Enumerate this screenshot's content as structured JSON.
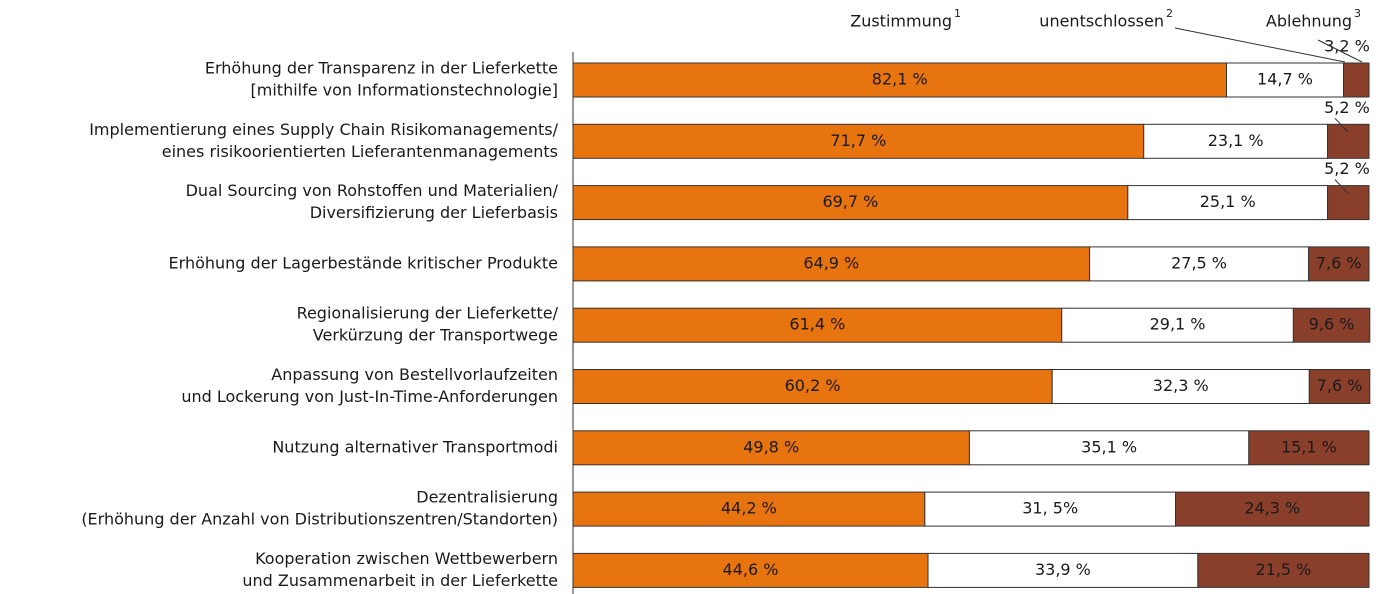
{
  "chart_data": {
    "type": "stacked-barh",
    "categories": [
      [
        "Erhöhung der Transparenz in der Lieferkette",
        "[mithilfe von Informationstechnologie]"
      ],
      [
        "Implementierung eines Supply Chain Risikomanagements/",
        "eines risikoorientierten Lieferantenmanagements"
      ],
      [
        "Dual Sourcing von Rohstoffen und Materialien/",
        "Diversifizierung der Lieferbasis"
      ],
      [
        "Erhöhung der Lagerbestände kritischer Produkte"
      ],
      [
        "Regionalisierung der Lieferkette/",
        "Verkürzung der Transportwege"
      ],
      [
        "Anpassung von Bestellvorlaufzeiten",
        "und Lockerung von Just-In-Time-Anforderungen"
      ],
      [
        "Nutzung alternativer Transportmodi"
      ],
      [
        "Dezentralisierung",
        "(Erhöhung der Anzahl von Distributionszentren/Standorten)"
      ],
      [
        "Kooperation zwischen Wettbewerbern",
        "und Zusammenarbeit in der Lieferkette"
      ]
    ],
    "series": [
      {
        "name": "Zustimmung",
        "footnote": "1",
        "color": "#e8740f",
        "label_color": "#ffffff",
        "values": [
          82.1,
          71.7,
          69.7,
          64.9,
          61.4,
          60.2,
          49.8,
          44.2,
          44.6
        ],
        "value_labels": [
          "82,1 %",
          "71,7 %",
          "69,7 %",
          "64,9 %",
          "61,4 %",
          "60,2 %",
          "49,8 %",
          "44,2 %",
          "44,6 %"
        ]
      },
      {
        "name": "unentschlossen",
        "footnote": "2",
        "color": "#ffffff",
        "label_color": "#1a1a1a",
        "values": [
          14.7,
          23.1,
          25.1,
          27.5,
          29.1,
          32.3,
          35.1,
          31.5,
          33.9
        ],
        "value_labels": [
          "14,7 %",
          "23,1 %",
          "25,1 %",
          "27,5 %",
          "29,1 %",
          "32,3 %",
          "35,1 %",
          "31, 5%",
          "33,9 %"
        ]
      },
      {
        "name": "Ablehnung",
        "footnote": "3",
        "color": "#8a3f2b",
        "label_color": "#ffffff",
        "values": [
          3.2,
          5.2,
          5.2,
          7.6,
          9.6,
          7.6,
          15.1,
          24.3,
          21.5
        ],
        "value_labels": [
          "3,2 %",
          "5,2 %",
          "5,2 %",
          "7,6 %",
          "9,6 %",
          "7,6 %",
          "15,1 %",
          "24,3 %",
          "21,5 %"
        ]
      }
    ],
    "xlim": [
      0,
      100
    ]
  }
}
